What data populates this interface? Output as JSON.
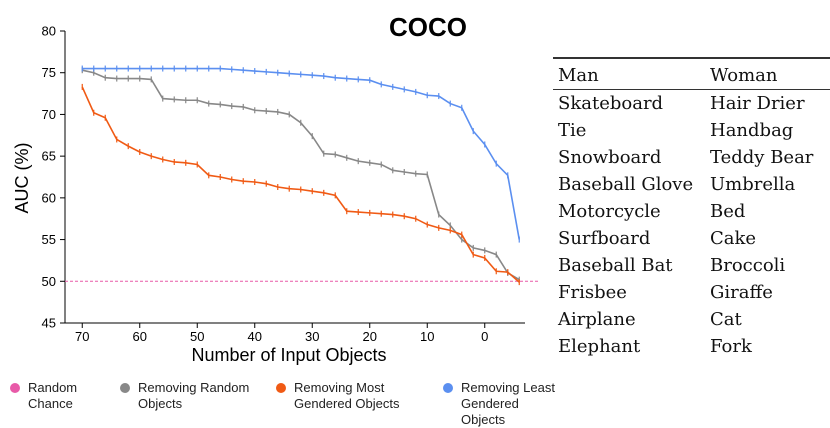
{
  "chart_data": {
    "type": "line",
    "title": "COCO",
    "xlabel": "Number of Input Objects",
    "ylabel": "AUC (%)",
    "xlim": [
      73,
      -7
    ],
    "ylim": [
      45,
      80
    ],
    "x_ticks": [
      70,
      60,
      50,
      40,
      30,
      20,
      10,
      0
    ],
    "y_ticks": [
      45,
      50,
      55,
      60,
      65,
      70,
      75,
      80
    ],
    "grid": false,
    "legend_position": "bottom",
    "reference_line": {
      "name": "Random Chance",
      "y": 50,
      "color": "#e85aa8",
      "style": "dashed"
    },
    "series": [
      {
        "name": "Removing Random Objects",
        "color": "#888888",
        "points": [
          [
            70,
            75.3
          ],
          [
            68,
            75.0
          ],
          [
            66,
            74.4
          ],
          [
            64,
            74.3
          ],
          [
            62,
            74.3
          ],
          [
            60,
            74.3
          ],
          [
            58,
            74.2
          ],
          [
            56,
            71.9
          ],
          [
            54,
            71.8
          ],
          [
            52,
            71.7
          ],
          [
            50,
            71.7
          ],
          [
            48,
            71.3
          ],
          [
            46,
            71.2
          ],
          [
            44,
            71.0
          ],
          [
            42,
            70.9
          ],
          [
            40,
            70.5
          ],
          [
            38,
            70.4
          ],
          [
            36,
            70.3
          ],
          [
            34,
            70.0
          ],
          [
            32,
            69.0
          ],
          [
            30,
            67.4
          ],
          [
            28,
            65.3
          ],
          [
            26,
            65.2
          ],
          [
            24,
            64.8
          ],
          [
            22,
            64.4
          ],
          [
            20,
            64.2
          ],
          [
            18,
            64.0
          ],
          [
            16,
            63.3
          ],
          [
            14,
            63.1
          ],
          [
            12,
            62.9
          ],
          [
            10,
            62.8
          ],
          [
            8,
            58.0
          ],
          [
            6,
            56.7
          ],
          [
            4,
            55.0
          ],
          [
            2,
            54.0
          ],
          [
            0,
            53.7
          ],
          [
            -2,
            53.2
          ],
          [
            -4,
            51.0
          ],
          [
            -6,
            50.2
          ]
        ]
      },
      {
        "name": "Removing Most Gendered Objects",
        "color": "#f05a14",
        "points": [
          [
            70,
            73.3
          ],
          [
            68,
            70.2
          ],
          [
            66,
            69.6
          ],
          [
            64,
            67.0
          ],
          [
            62,
            66.2
          ],
          [
            60,
            65.5
          ],
          [
            58,
            65.0
          ],
          [
            56,
            64.6
          ],
          [
            54,
            64.3
          ],
          [
            52,
            64.2
          ],
          [
            50,
            64.0
          ],
          [
            48,
            62.7
          ],
          [
            46,
            62.5
          ],
          [
            44,
            62.2
          ],
          [
            42,
            62.0
          ],
          [
            40,
            61.9
          ],
          [
            38,
            61.7
          ],
          [
            36,
            61.3
          ],
          [
            34,
            61.1
          ],
          [
            32,
            61.0
          ],
          [
            30,
            60.8
          ],
          [
            28,
            60.6
          ],
          [
            26,
            60.3
          ],
          [
            24,
            58.4
          ],
          [
            22,
            58.3
          ],
          [
            20,
            58.2
          ],
          [
            18,
            58.1
          ],
          [
            16,
            58.0
          ],
          [
            14,
            57.8
          ],
          [
            12,
            57.5
          ],
          [
            10,
            56.8
          ],
          [
            8,
            56.4
          ],
          [
            6,
            56.1
          ],
          [
            4,
            55.6
          ],
          [
            2,
            53.2
          ],
          [
            0,
            52.8
          ],
          [
            -2,
            51.2
          ],
          [
            -4,
            51.1
          ],
          [
            -6,
            49.9
          ]
        ]
      },
      {
        "name": "Removing Least Gendered Objects",
        "color": "#5b8ff0",
        "points": [
          [
            70,
            75.5
          ],
          [
            68,
            75.5
          ],
          [
            66,
            75.5
          ],
          [
            64,
            75.5
          ],
          [
            62,
            75.5
          ],
          [
            60,
            75.5
          ],
          [
            58,
            75.5
          ],
          [
            56,
            75.5
          ],
          [
            54,
            75.5
          ],
          [
            52,
            75.5
          ],
          [
            50,
            75.5
          ],
          [
            48,
            75.5
          ],
          [
            46,
            75.5
          ],
          [
            44,
            75.4
          ],
          [
            42,
            75.3
          ],
          [
            40,
            75.2
          ],
          [
            38,
            75.1
          ],
          [
            36,
            75.0
          ],
          [
            34,
            74.9
          ],
          [
            32,
            74.8
          ],
          [
            30,
            74.7
          ],
          [
            28,
            74.6
          ],
          [
            26,
            74.4
          ],
          [
            24,
            74.3
          ],
          [
            22,
            74.2
          ],
          [
            20,
            74.1
          ],
          [
            18,
            73.6
          ],
          [
            16,
            73.3
          ],
          [
            14,
            73.0
          ],
          [
            12,
            72.7
          ],
          [
            10,
            72.3
          ],
          [
            8,
            72.2
          ],
          [
            6,
            71.3
          ],
          [
            4,
            70.8
          ],
          [
            2,
            68.0
          ],
          [
            0,
            66.4
          ],
          [
            -2,
            64.1
          ],
          [
            -4,
            62.7
          ],
          [
            -6,
            55.0
          ]
        ]
      }
    ]
  },
  "legend": [
    {
      "label": "Random\nChance",
      "color": "#e85aa8"
    },
    {
      "label": "Removing Random\nObjects",
      "color": "#888888"
    },
    {
      "label": "Removing Most\nGendered Objects",
      "color": "#f05a14"
    },
    {
      "label": "Removing Least\nGendered Objects",
      "color": "#5b8ff0"
    }
  ],
  "table": {
    "headers": [
      "Man",
      "Woman"
    ],
    "rows": [
      [
        "Skateboard",
        "Hair Drier"
      ],
      [
        "Tie",
        "Handbag"
      ],
      [
        "Snowboard",
        "Teddy Bear"
      ],
      [
        "Baseball Glove",
        "Umbrella"
      ],
      [
        "Motorcycle",
        "Bed"
      ],
      [
        "Surfboard",
        "Cake"
      ],
      [
        "Baseball Bat",
        "Broccoli"
      ],
      [
        "Frisbee",
        "Giraffe"
      ],
      [
        "Airplane",
        "Cat"
      ],
      [
        "Elephant",
        "Fork"
      ]
    ]
  }
}
